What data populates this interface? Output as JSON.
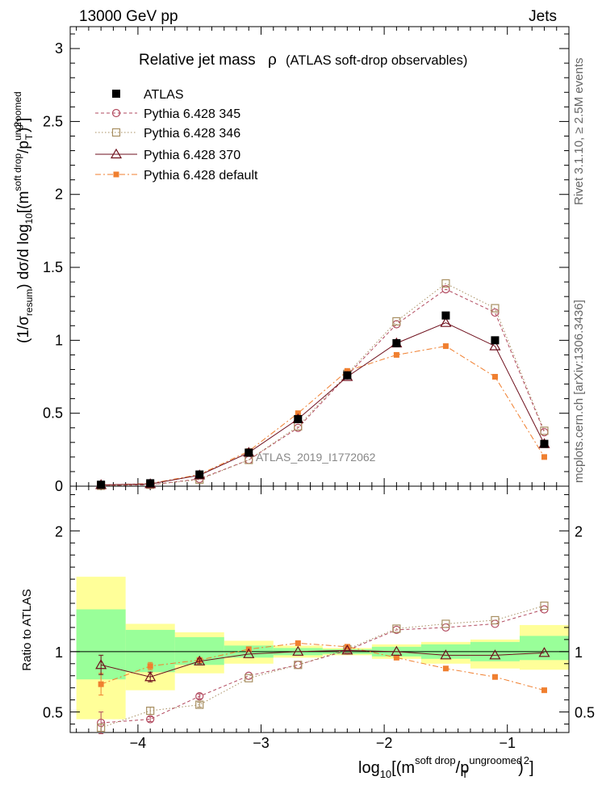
{
  "header": {
    "left": "13000 GeV pp",
    "right": "Jets"
  },
  "side_labels": {
    "rivet": "Rivet 3.1.10, ≥ 2.5M events",
    "mcplots": "mcplots.cern.ch [arXiv:1306.3436]"
  },
  "top_panel": {
    "title_main": "Relative jet mass",
    "title_rho": "ρ",
    "title_paren": "(ATLAS soft-drop observables)",
    "watermark": "ATLAS_2019_I1772062",
    "ylabel": {
      "a": "(1/σ",
      "a_sub": "resum",
      "b": ") dσ/d log",
      "b_sub": "10",
      "c": "[(m",
      "c_sup": "soft drop",
      "d": "/p",
      "d_sup": "ungroomed",
      "d_sub": "T",
      "e": ")",
      "e_sup": "2",
      "f": "]"
    },
    "ylim": [
      0,
      3.15
    ],
    "y_ticks": [
      {
        "v": 0.5,
        "label": "0.5"
      },
      {
        "v": 1,
        "label": "1"
      },
      {
        "v": 1.5,
        "label": "1.5"
      },
      {
        "v": 2,
        "label": "2"
      },
      {
        "v": 2.5,
        "label": "2.5"
      },
      {
        "v": 3,
        "label": "3"
      }
    ],
    "zero_label": "0"
  },
  "bottom_panel": {
    "ylabel": "Ratio to ATLAS",
    "ylim": [
      0.33,
      2.37
    ],
    "y_ticks": [
      {
        "v": 0.5,
        "label": "0.5"
      },
      {
        "v": 1,
        "label": "1"
      },
      {
        "v": 2,
        "label": "2"
      }
    ]
  },
  "x_axis": {
    "xlim": [
      -4.55,
      -0.5
    ],
    "ticks": [
      {
        "v": -4,
        "label": "−4"
      },
      {
        "v": -3,
        "label": "−3"
      },
      {
        "v": -2,
        "label": "−2"
      },
      {
        "v": -1,
        "label": "−1"
      }
    ],
    "xlabel": {
      "a": "log",
      "a_sub": "10",
      "b": "[(m",
      "b_sup": "soft drop",
      "c": "/p",
      "c_sup": "ungroomed",
      "c_sub": "T",
      "d": ")",
      "d_sup": "2",
      "e": "]"
    }
  },
  "chart_data": {
    "type": "scatter",
    "x": [
      -4.3,
      -3.9,
      -3.5,
      -3.1,
      -2.7,
      -2.3,
      -1.9,
      -1.5,
      -1.1,
      -0.7
    ],
    "bin_edges": [
      -4.5,
      -4.1,
      -3.7,
      -3.3,
      -2.9,
      -2.5,
      -2.1,
      -1.7,
      -1.3,
      -0.9,
      -0.5
    ],
    "series": [
      {
        "name": "ATLAS",
        "color": "#000000",
        "marker": "filled-square",
        "values": [
          0.01,
          0.02,
          0.08,
          0.23,
          0.46,
          0.76,
          0.98,
          1.17,
          1.0,
          0.29
        ],
        "ratio": [
          1,
          1,
          1,
          1,
          1,
          1,
          1,
          1,
          1,
          1
        ]
      },
      {
        "name": "Pythia 6.428 345",
        "color": "#b24a5f",
        "marker": "open-circle",
        "dash": "4,3",
        "values": [
          0.004,
          0.009,
          0.05,
          0.18,
          0.4,
          0.76,
          1.11,
          1.35,
          1.19,
          0.37
        ],
        "ratio": [
          0.41,
          0.44,
          0.63,
          0.8,
          0.89,
          1.01,
          1.18,
          1.2,
          1.23,
          1.35
        ]
      },
      {
        "name": "Pythia 6.428 346",
        "color": "#a88f62",
        "marker": "open-square",
        "dash": "1.5,2.5",
        "values": [
          0.003,
          0.01,
          0.045,
          0.18,
          0.41,
          0.77,
          1.13,
          1.39,
          1.22,
          0.38
        ],
        "ratio": [
          0.37,
          0.51,
          0.56,
          0.78,
          0.89,
          1.02,
          1.19,
          1.23,
          1.26,
          1.38
        ]
      },
      {
        "name": "Pythia 6.428 370",
        "color": "#6e0f1c",
        "marker": "open-triangle",
        "dash": "",
        "values": [
          0.009,
          0.015,
          0.075,
          0.23,
          0.46,
          0.75,
          0.98,
          1.12,
          0.96,
          0.29
        ],
        "ratio": [
          0.89,
          0.79,
          0.92,
          0.98,
          1.0,
          1.01,
          1.0,
          0.97,
          0.97,
          0.99
        ]
      },
      {
        "name": "Pythia 6.428 default",
        "color": "#f07f2f",
        "marker": "filled-small-square",
        "dash": "7,3,2,3",
        "values": [
          0.008,
          0.018,
          0.08,
          0.24,
          0.5,
          0.79,
          0.9,
          0.96,
          0.75,
          0.2
        ],
        "ratio": [
          0.73,
          0.88,
          0.93,
          1.02,
          1.07,
          1.04,
          0.95,
          0.86,
          0.79,
          0.68
        ]
      }
    ],
    "ratio_errors": {
      "Pythia 6.428 370": [
        0.08,
        0.04,
        0.02,
        0.01,
        0.01,
        0.01,
        0.01,
        0.01,
        0.01,
        0.01
      ],
      "Pythia 6.428 default": [
        0.09,
        0.03,
        0.02,
        0.01,
        0.01,
        0.01,
        0.01,
        0.01,
        0.01,
        0.01
      ],
      "Pythia 6.428 345": [
        0.09,
        0.02,
        0.02,
        0.01,
        0.01,
        0.01,
        0.01,
        0.01,
        0.01,
        0.01
      ],
      "Pythia 6.428 346": [
        0.03,
        0.03,
        0.02,
        0.01,
        0.01,
        0.01,
        0.01,
        0.01,
        0.01,
        0.01
      ]
    },
    "uncertainty_bands": {
      "yellow": [
        [
          0.44,
          1.62
        ],
        [
          0.68,
          1.23
        ],
        [
          0.82,
          1.16
        ],
        [
          0.9,
          1.09
        ],
        [
          0.95,
          1.05
        ],
        [
          0.97,
          1.03
        ],
        [
          0.94,
          1.06
        ],
        [
          0.9,
          1.08
        ],
        [
          0.86,
          1.1
        ],
        [
          0.85,
          1.22
        ]
      ],
      "green": [
        [
          0.77,
          1.35
        ],
        [
          0.83,
          1.18
        ],
        [
          0.89,
          1.12
        ],
        [
          0.95,
          1.05
        ],
        [
          0.97,
          1.03
        ],
        [
          0.98,
          1.02
        ],
        [
          0.96,
          1.04
        ],
        [
          0.94,
          1.06
        ],
        [
          0.92,
          1.08
        ],
        [
          0.93,
          1.13
        ]
      ]
    }
  }
}
